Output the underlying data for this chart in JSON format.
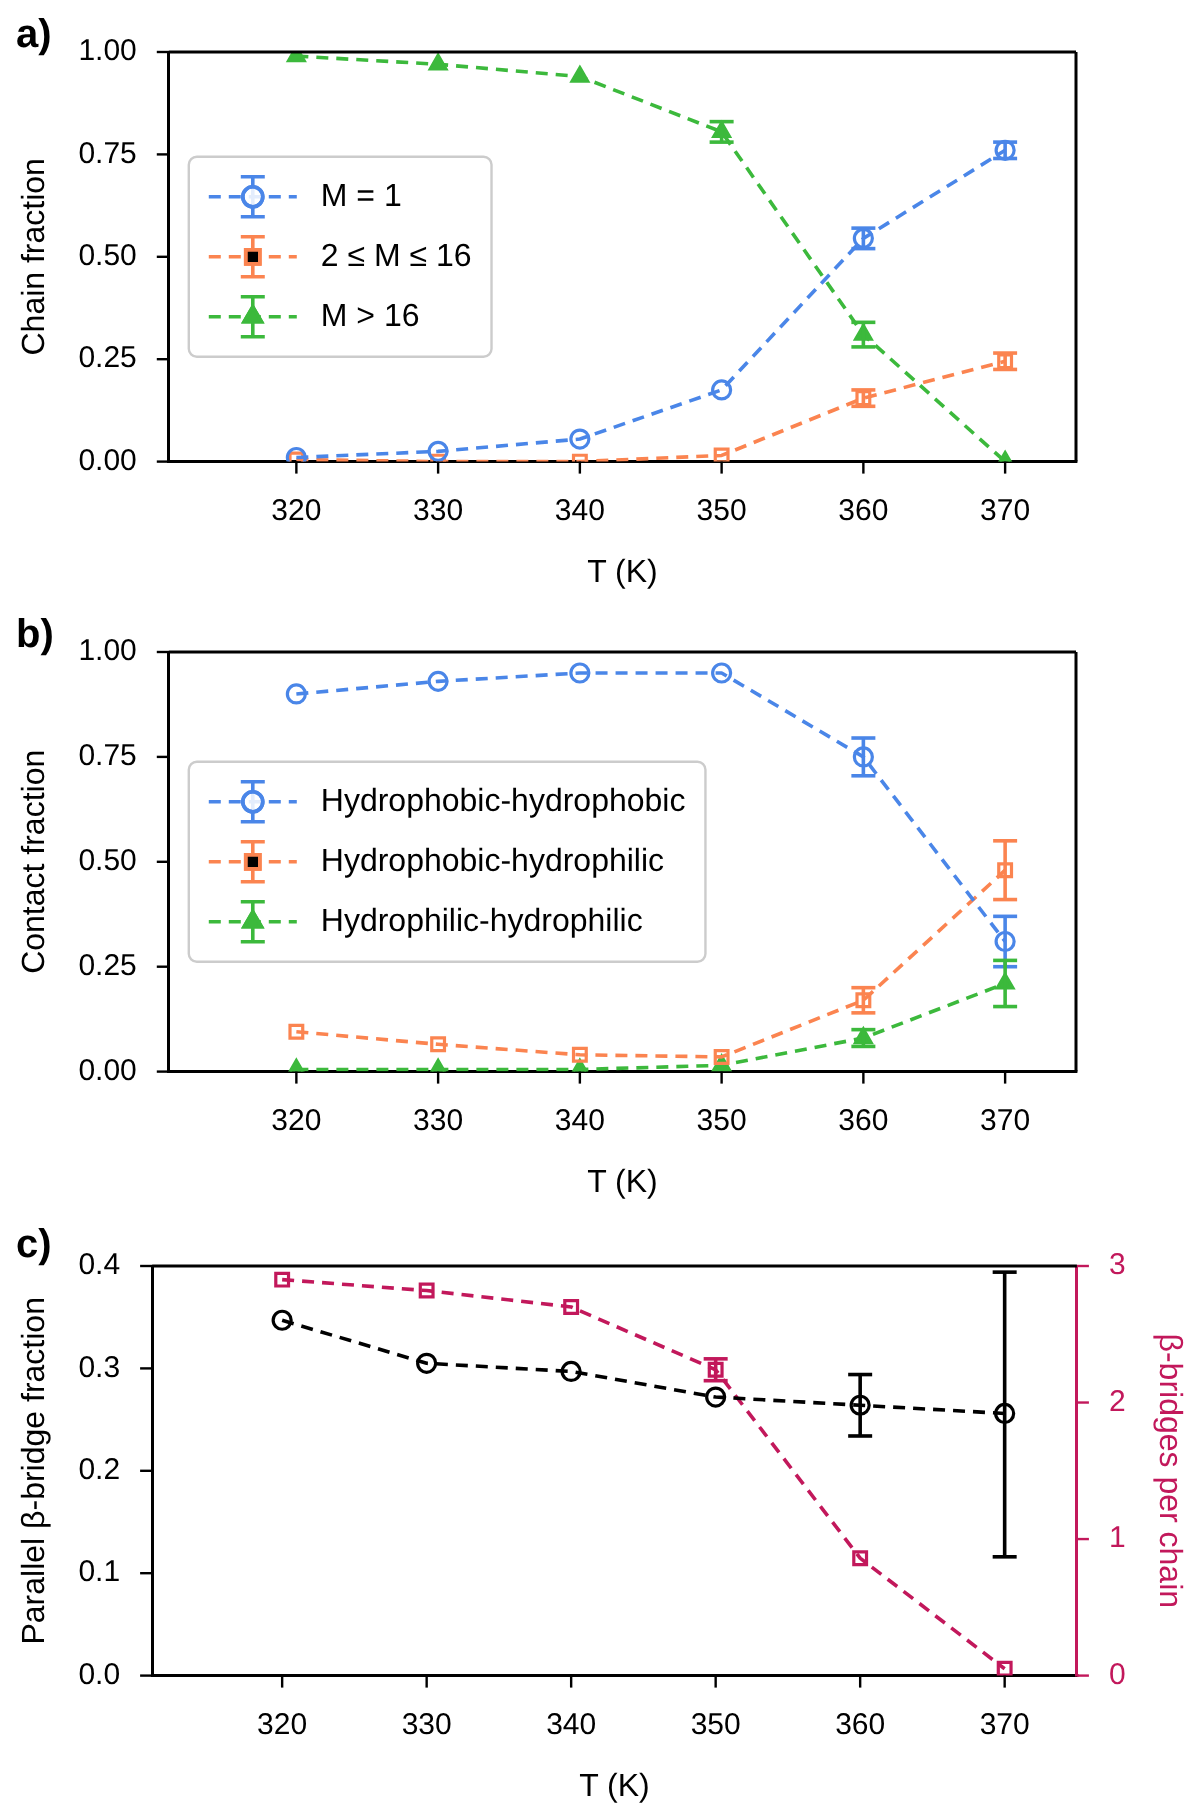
{
  "chart_data": [
    {
      "type": "line",
      "annotations": [
        "a)"
      ],
      "xlabel": "T (K)",
      "ylabel": "Chain fraction",
      "x": [
        320,
        330,
        340,
        350,
        360,
        370
      ],
      "xlim": [
        311,
        375
      ],
      "xticks": [
        320,
        330,
        340,
        350,
        360,
        370
      ],
      "ylim": [
        0,
        1
      ],
      "yticks": [
        {
          "value": 0,
          "label": "0.00"
        },
        {
          "value": 0.25,
          "label": "0.25"
        },
        {
          "value": 0.5,
          "label": "0.50"
        },
        {
          "value": 0.75,
          "label": "0.75"
        },
        {
          "value": 1,
          "label": "1.00"
        }
      ],
      "grid": false,
      "legend": "center left",
      "line_style": "dashed",
      "series": [
        {
          "name": "M = 1",
          "color": "#4a86e8",
          "marker": "circle",
          "values": [
            0.01,
            0.025,
            0.055,
            0.175,
            0.545,
            0.76
          ],
          "errors": [
            null,
            null,
            null,
            null,
            0.025,
            0.02
          ]
        },
        {
          "name": "2 ≤ M ≤ 16",
          "color": "#fb8450",
          "marker": "square",
          "values": [
            0.005,
            0.0,
            0.0,
            0.015,
            0.155,
            0.245
          ],
          "errors": [
            null,
            null,
            null,
            null,
            0.02,
            0.02
          ]
        },
        {
          "name": "M > 16",
          "color": "#3cb93c",
          "marker": "triangle",
          "values": [
            0.99,
            0.97,
            0.94,
            0.805,
            0.31,
            0.0
          ],
          "errors": [
            null,
            null,
            null,
            0.025,
            0.03,
            null
          ]
        }
      ]
    },
    {
      "type": "line",
      "annotations": [
        "b)"
      ],
      "xlabel": "T (K)",
      "ylabel": "Contact fraction",
      "x": [
        320,
        330,
        340,
        350,
        360,
        370
      ],
      "xlim": [
        311,
        375
      ],
      "xticks": [
        320,
        330,
        340,
        350,
        360,
        370
      ],
      "ylim": [
        0,
        1
      ],
      "yticks": [
        {
          "value": 0,
          "label": "0.00"
        },
        {
          "value": 0.25,
          "label": "0.25"
        },
        {
          "value": 0.5,
          "label": "0.50"
        },
        {
          "value": 0.75,
          "label": "0.75"
        },
        {
          "value": 1,
          "label": "1.00"
        }
      ],
      "grid": false,
      "legend": "center left",
      "line_style": "dashed",
      "series": [
        {
          "name": "Hydrophobic-hydrophobic",
          "color": "#4a86e8",
          "marker": "circle",
          "values": [
            0.9,
            0.93,
            0.95,
            0.95,
            0.75,
            0.31
          ],
          "errors": [
            null,
            null,
            null,
            null,
            0.045,
            0.06
          ]
        },
        {
          "name": "Hydrophobic-hydrophilic",
          "color": "#fb8450",
          "marker": "square",
          "values": [
            0.095,
            0.065,
            0.04,
            0.035,
            0.17,
            0.48
          ],
          "errors": [
            null,
            null,
            null,
            null,
            0.03,
            0.07
          ]
        },
        {
          "name": "Hydrophilic-hydrophilic",
          "color": "#3cb93c",
          "marker": "triangle",
          "values": [
            0.005,
            0.005,
            0.005,
            0.015,
            0.08,
            0.21
          ],
          "errors": [
            null,
            null,
            null,
            null,
            0.02,
            0.055
          ]
        }
      ]
    },
    {
      "type": "line",
      "annotations": [
        "c)"
      ],
      "xlabel": "T (K)",
      "ylabel": "Parallel β-bridge fraction",
      "y2label": "β-bridges per chain",
      "x": [
        320,
        330,
        340,
        350,
        360,
        370
      ],
      "xlim": [
        311,
        375
      ],
      "xticks": [
        320,
        330,
        340,
        350,
        360,
        370
      ],
      "ylim": [
        0,
        0.4
      ],
      "yticks": [
        {
          "value": 0,
          "label": "0.0"
        },
        0.1,
        0.2,
        0.3,
        0.4
      ],
      "y2lim": [
        0,
        3
      ],
      "y2ticks": [
        0,
        1,
        2,
        3
      ],
      "grid": false,
      "legend": false,
      "line_style": "dashed",
      "series": [
        {
          "color": "#000000",
          "marker": "circle",
          "values": [
            0.347,
            0.305,
            0.297,
            0.272,
            0.264,
            0.256
          ],
          "errors": [
            null,
            null,
            null,
            null,
            0.03,
            [
              0.14,
              0.138
            ]
          ]
        },
        {
          "color": "#c2185b",
          "marker": "square",
          "axis": "y2",
          "values": [
            2.9,
            2.82,
            2.7,
            2.24,
            0.86,
            0.05
          ],
          "errors": [
            null,
            null,
            null,
            0.08,
            null,
            null
          ]
        }
      ]
    }
  ]
}
